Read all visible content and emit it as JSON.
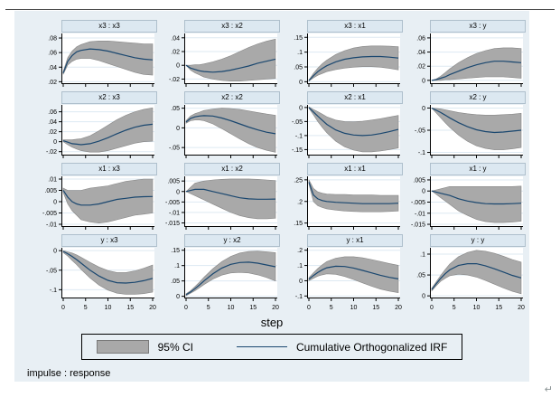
{
  "page": {
    "return_mark": "↵"
  },
  "figure": {
    "xlabel": "step",
    "caption": "impulse : response",
    "legend": {
      "ci_label": "95% CI",
      "line_label": "Cumulative Orthogonalized IRF"
    }
  },
  "colors": {
    "figure_bg": "#e8eff4",
    "title_bg": "#dce8f1",
    "plot_bg": "#ffffff",
    "gridline": "#dde9f2",
    "ci_band": "#a9a9a9",
    "ci_band_border": "#878787",
    "irf_line": "#1a476f",
    "axis": "#000000"
  },
  "chart_meta": {
    "x": [
      0,
      1,
      2,
      3,
      4,
      6,
      8,
      10,
      12,
      14,
      16,
      18,
      20
    ],
    "xlim": [
      0,
      20
    ],
    "xticks": [
      0,
      5,
      10,
      15,
      20
    ]
  },
  "chart_data": [
    {
      "type": "line-ci",
      "title": "x3 : x3",
      "ylim": [
        0.018,
        0.085
      ],
      "yticks": [
        0.02,
        0.04,
        0.06,
        0.08
      ],
      "mid": [
        0.032,
        0.048,
        0.056,
        0.061,
        0.063,
        0.065,
        0.064,
        0.062,
        0.059,
        0.056,
        0.053,
        0.051,
        0.05
      ],
      "lower": [
        0.03,
        0.043,
        0.048,
        0.051,
        0.052,
        0.052,
        0.049,
        0.045,
        0.041,
        0.037,
        0.033,
        0.03,
        0.029
      ],
      "upper": [
        0.034,
        0.053,
        0.062,
        0.068,
        0.071,
        0.075,
        0.076,
        0.076,
        0.075,
        0.074,
        0.073,
        0.072,
        0.072
      ]
    },
    {
      "type": "line-ci",
      "title": "x3 : x2",
      "ylim": [
        -0.026,
        0.045
      ],
      "yticks": [
        -0.02,
        0,
        0.02,
        0.04
      ],
      "mid": [
        0,
        -0.004,
        -0.006,
        -0.008,
        -0.009,
        -0.01,
        -0.009,
        -0.007,
        -0.004,
        -0.001,
        0.003,
        0.006,
        0.009
      ],
      "lower": [
        0,
        -0.007,
        -0.011,
        -0.014,
        -0.017,
        -0.02,
        -0.022,
        -0.023,
        -0.023,
        -0.022,
        -0.021,
        -0.02,
        -0.019
      ],
      "upper": [
        0,
        0,
        0.001,
        0.001,
        0.002,
        0.005,
        0.009,
        0.014,
        0.02,
        0.026,
        0.031,
        0.035,
        0.038
      ]
    },
    {
      "type": "line-ci",
      "title": "x3 : x1",
      "ylim": [
        -0.005,
        0.16
      ],
      "yticks": [
        0,
        0.05,
        0.1,
        0.15
      ],
      "mid": [
        0.004,
        0.02,
        0.034,
        0.045,
        0.054,
        0.067,
        0.076,
        0.081,
        0.084,
        0.085,
        0.085,
        0.083,
        0.08
      ],
      "lower": [
        0.002,
        0.013,
        0.022,
        0.028,
        0.034,
        0.041,
        0.046,
        0.049,
        0.051,
        0.051,
        0.049,
        0.045,
        0.04
      ],
      "upper": [
        0.006,
        0.028,
        0.046,
        0.061,
        0.073,
        0.092,
        0.105,
        0.114,
        0.119,
        0.121,
        0.121,
        0.12,
        0.118
      ]
    },
    {
      "type": "line-ci",
      "title": "x3 : y",
      "ylim": [
        -0.004,
        0.065
      ],
      "yticks": [
        0,
        0.02,
        0.04,
        0.06
      ],
      "mid": [
        0,
        0.001,
        0.003,
        0.005,
        0.008,
        0.013,
        0.018,
        0.022,
        0.025,
        0.027,
        0.027,
        0.026,
        0.025
      ],
      "lower": [
        0,
        0,
        0,
        0.001,
        0.001,
        0.002,
        0.003,
        0.004,
        0.005,
        0.005,
        0.005,
        0.004,
        0.003
      ],
      "upper": [
        0,
        0.002,
        0.006,
        0.011,
        0.016,
        0.025,
        0.032,
        0.038,
        0.042,
        0.045,
        0.046,
        0.046,
        0.045
      ]
    },
    {
      "type": "line-ci",
      "title": "x2 : x3",
      "ylim": [
        -0.026,
        0.072
      ],
      "yticks": [
        -0.02,
        0,
        0.02,
        0.04,
        0.06
      ],
      "mid": [
        0.002,
        -0.001,
        -0.004,
        -0.005,
        -0.006,
        -0.004,
        0.001,
        0.008,
        0.016,
        0.023,
        0.029,
        0.033,
        0.035
      ],
      "lower": [
        0,
        -0.006,
        -0.011,
        -0.015,
        -0.018,
        -0.021,
        -0.021,
        -0.018,
        -0.013,
        -0.008,
        -0.003,
        0,
        0.001
      ],
      "upper": [
        0.004,
        0.004,
        0.004,
        0.005,
        0.006,
        0.012,
        0.022,
        0.033,
        0.044,
        0.053,
        0.06,
        0.065,
        0.068
      ]
    },
    {
      "type": "line-ci",
      "title": "x2 : x2",
      "ylim": [
        -0.068,
        0.056
      ],
      "yticks": [
        -0.05,
        0,
        0.05
      ],
      "mid": [
        0.015,
        0.024,
        0.028,
        0.03,
        0.031,
        0.03,
        0.025,
        0.018,
        0.01,
        0.002,
        -0.005,
        -0.011,
        -0.015
      ],
      "lower": [
        0.012,
        0.018,
        0.02,
        0.02,
        0.018,
        0.01,
        -0.002,
        -0.015,
        -0.028,
        -0.04,
        -0.05,
        -0.057,
        -0.062
      ],
      "upper": [
        0.018,
        0.03,
        0.036,
        0.04,
        0.044,
        0.048,
        0.05,
        0.049,
        0.047,
        0.043,
        0.039,
        0.035,
        0.032
      ]
    },
    {
      "type": "line-ci",
      "title": "x2 : x1",
      "ylim": [
        -0.168,
        0.006
      ],
      "yticks": [
        -0.15,
        -0.1,
        -0.05,
        0
      ],
      "mid": [
        0,
        -0.016,
        -0.031,
        -0.046,
        -0.06,
        -0.08,
        -0.092,
        -0.098,
        -0.1,
        -0.098,
        -0.093,
        -0.086,
        -0.078
      ],
      "lower": [
        -0.002,
        -0.026,
        -0.05,
        -0.071,
        -0.09,
        -0.12,
        -0.14,
        -0.152,
        -0.158,
        -0.158,
        -0.155,
        -0.15,
        -0.144
      ],
      "upper": [
        0.002,
        -0.007,
        -0.015,
        -0.024,
        -0.033,
        -0.045,
        -0.05,
        -0.051,
        -0.049,
        -0.045,
        -0.04,
        -0.034,
        -0.028
      ]
    },
    {
      "type": "line-ci",
      "title": "x2 : y",
      "ylim": [
        -0.105,
        0.005
      ],
      "yticks": [
        -0.1,
        -0.05,
        0
      ],
      "mid": [
        0,
        -0.005,
        -0.01,
        -0.016,
        -0.022,
        -0.033,
        -0.042,
        -0.049,
        -0.053,
        -0.055,
        -0.054,
        -0.052,
        -0.05
      ],
      "lower": [
        0,
        -0.011,
        -0.022,
        -0.033,
        -0.043,
        -0.061,
        -0.075,
        -0.085,
        -0.091,
        -0.094,
        -0.094,
        -0.092,
        -0.089
      ],
      "upper": [
        0,
        -0.001,
        -0.002,
        -0.004,
        -0.006,
        -0.01,
        -0.013,
        -0.015,
        -0.016,
        -0.016,
        -0.015,
        -0.014,
        -0.012
      ]
    },
    {
      "type": "line-ci",
      "title": "x1 : x3",
      "ylim": [
        -0.0108,
        0.0108
      ],
      "yticks": [
        -0.01,
        -0.005,
        0,
        0.005,
        0.01
      ],
      "mid": [
        0.005,
        0.002,
        0,
        -0.001,
        -0.0015,
        -0.0015,
        -0.001,
        0,
        0.001,
        0.0015,
        0.002,
        0.0022,
        0.0023
      ],
      "lower": [
        0.004,
        -0.001,
        -0.004,
        -0.006,
        -0.008,
        -0.009,
        -0.0095,
        -0.009,
        -0.008,
        -0.007,
        -0.006,
        -0.0055,
        -0.005
      ],
      "upper": [
        0.006,
        0.005,
        0.005,
        0.005,
        0.005,
        0.006,
        0.0065,
        0.007,
        0.008,
        0.009,
        0.0095,
        0.01,
        0.01
      ]
    },
    {
      "type": "line-ci",
      "title": "x1 : x2",
      "ylim": [
        -0.0165,
        0.0068
      ],
      "yticks": [
        -0.015,
        -0.01,
        -0.005,
        0,
        0.005
      ],
      "mid": [
        0,
        0.0005,
        0.001,
        0.001,
        0.001,
        0,
        -0.001,
        -0.002,
        -0.003,
        -0.0035,
        -0.0037,
        -0.0037,
        -0.0036
      ],
      "lower": [
        0,
        -0.001,
        -0.002,
        -0.003,
        -0.004,
        -0.006,
        -0.008,
        -0.01,
        -0.0115,
        -0.0125,
        -0.013,
        -0.013,
        -0.0128
      ],
      "upper": [
        0,
        0.002,
        0.004,
        0.0045,
        0.005,
        0.0055,
        0.0058,
        0.006,
        0.006,
        0.006,
        0.0058,
        0.0055,
        0.0052
      ]
    },
    {
      "type": "line-ci",
      "title": "x1 : x1",
      "ylim": [
        0.143,
        0.256
      ],
      "yticks": [
        0.15,
        0.2,
        0.25
      ],
      "mid": [
        0.245,
        0.215,
        0.206,
        0.202,
        0.2,
        0.198,
        0.197,
        0.196,
        0.195,
        0.195,
        0.195,
        0.195,
        0.196
      ],
      "lower": [
        0.24,
        0.2,
        0.19,
        0.186,
        0.183,
        0.18,
        0.178,
        0.177,
        0.176,
        0.176,
        0.176,
        0.177,
        0.178
      ],
      "upper": [
        0.25,
        0.23,
        0.222,
        0.219,
        0.217,
        0.216,
        0.216,
        0.215,
        0.215,
        0.215,
        0.214,
        0.214,
        0.214
      ]
    },
    {
      "type": "line-ci",
      "title": "x1 : y",
      "ylim": [
        -0.0158,
        0.0062
      ],
      "yticks": [
        -0.015,
        -0.01,
        -0.005,
        0,
        0.005
      ],
      "mid": [
        0,
        -0.0005,
        -0.001,
        -0.0015,
        -0.002,
        -0.0035,
        -0.0045,
        -0.0052,
        -0.0057,
        -0.0058,
        -0.0058,
        -0.0057,
        -0.0055
      ],
      "lower": [
        0,
        -0.0015,
        -0.003,
        -0.0045,
        -0.006,
        -0.009,
        -0.011,
        -0.0128,
        -0.0138,
        -0.0142,
        -0.0142,
        -0.014,
        -0.0136
      ],
      "upper": [
        0,
        0.0005,
        0.001,
        0.0015,
        0.002,
        0.002,
        0.002,
        0.002,
        0.002,
        0.002,
        0.002,
        0.002,
        0.0022
      ]
    },
    {
      "type": "line-ci",
      "title": "y : x3",
      "ylim": [
        -0.12,
        0.005
      ],
      "yticks": [
        -0.1,
        -0.05,
        0
      ],
      "mid": [
        -0.002,
        -0.008,
        -0.015,
        -0.023,
        -0.032,
        -0.05,
        -0.065,
        -0.076,
        -0.082,
        -0.083,
        -0.081,
        -0.077,
        -0.071
      ],
      "lower": [
        -0.005,
        -0.014,
        -0.025,
        -0.036,
        -0.048,
        -0.07,
        -0.088,
        -0.101,
        -0.109,
        -0.112,
        -0.112,
        -0.11,
        -0.106
      ],
      "upper": [
        0,
        -0.003,
        -0.006,
        -0.011,
        -0.017,
        -0.03,
        -0.042,
        -0.051,
        -0.056,
        -0.056,
        -0.052,
        -0.045,
        -0.037
      ]
    },
    {
      "type": "line-ci",
      "title": "y : x2",
      "ylim": [
        -0.004,
        0.155
      ],
      "yticks": [
        0,
        0.05,
        0.1,
        0.15
      ],
      "mid": [
        0.005,
        0.014,
        0.025,
        0.037,
        0.05,
        0.073,
        0.092,
        0.104,
        0.11,
        0.111,
        0.108,
        0.102,
        0.096
      ],
      "lower": [
        0.002,
        0.01,
        0.018,
        0.028,
        0.038,
        0.056,
        0.069,
        0.076,
        0.078,
        0.076,
        0.07,
        0.061,
        0.05
      ],
      "upper": [
        0.008,
        0.018,
        0.032,
        0.046,
        0.062,
        0.09,
        0.113,
        0.13,
        0.141,
        0.146,
        0.147,
        0.145,
        0.142
      ]
    },
    {
      "type": "line-ci",
      "title": "y : x1",
      "ylim": [
        -0.11,
        0.21
      ],
      "yticks": [
        -0.1,
        0,
        0.1,
        0.2
      ],
      "mid": [
        0.01,
        0.034,
        0.055,
        0.072,
        0.085,
        0.095,
        0.093,
        0.083,
        0.068,
        0.052,
        0.036,
        0.022,
        0.012
      ],
      "lower": [
        0,
        0.016,
        0.03,
        0.039,
        0.045,
        0.042,
        0.028,
        0.008,
        -0.014,
        -0.036,
        -0.055,
        -0.068,
        -0.078
      ],
      "upper": [
        0.02,
        0.052,
        0.08,
        0.105,
        0.125,
        0.148,
        0.157,
        0.157,
        0.15,
        0.139,
        0.126,
        0.113,
        0.101
      ]
    },
    {
      "type": "line-ci",
      "title": "y : y",
      "ylim": [
        -0.004,
        0.113
      ],
      "yticks": [
        0,
        0.05,
        0.1
      ],
      "mid": [
        0.015,
        0.029,
        0.042,
        0.053,
        0.062,
        0.073,
        0.077,
        0.077,
        0.072,
        0.065,
        0.057,
        0.049,
        0.043
      ],
      "lower": [
        0.012,
        0.024,
        0.035,
        0.042,
        0.048,
        0.052,
        0.05,
        0.045,
        0.037,
        0.028,
        0.019,
        0.011,
        0.005
      ],
      "upper": [
        0.018,
        0.034,
        0.049,
        0.063,
        0.076,
        0.094,
        0.104,
        0.109,
        0.107,
        0.102,
        0.095,
        0.087,
        0.081
      ]
    }
  ]
}
